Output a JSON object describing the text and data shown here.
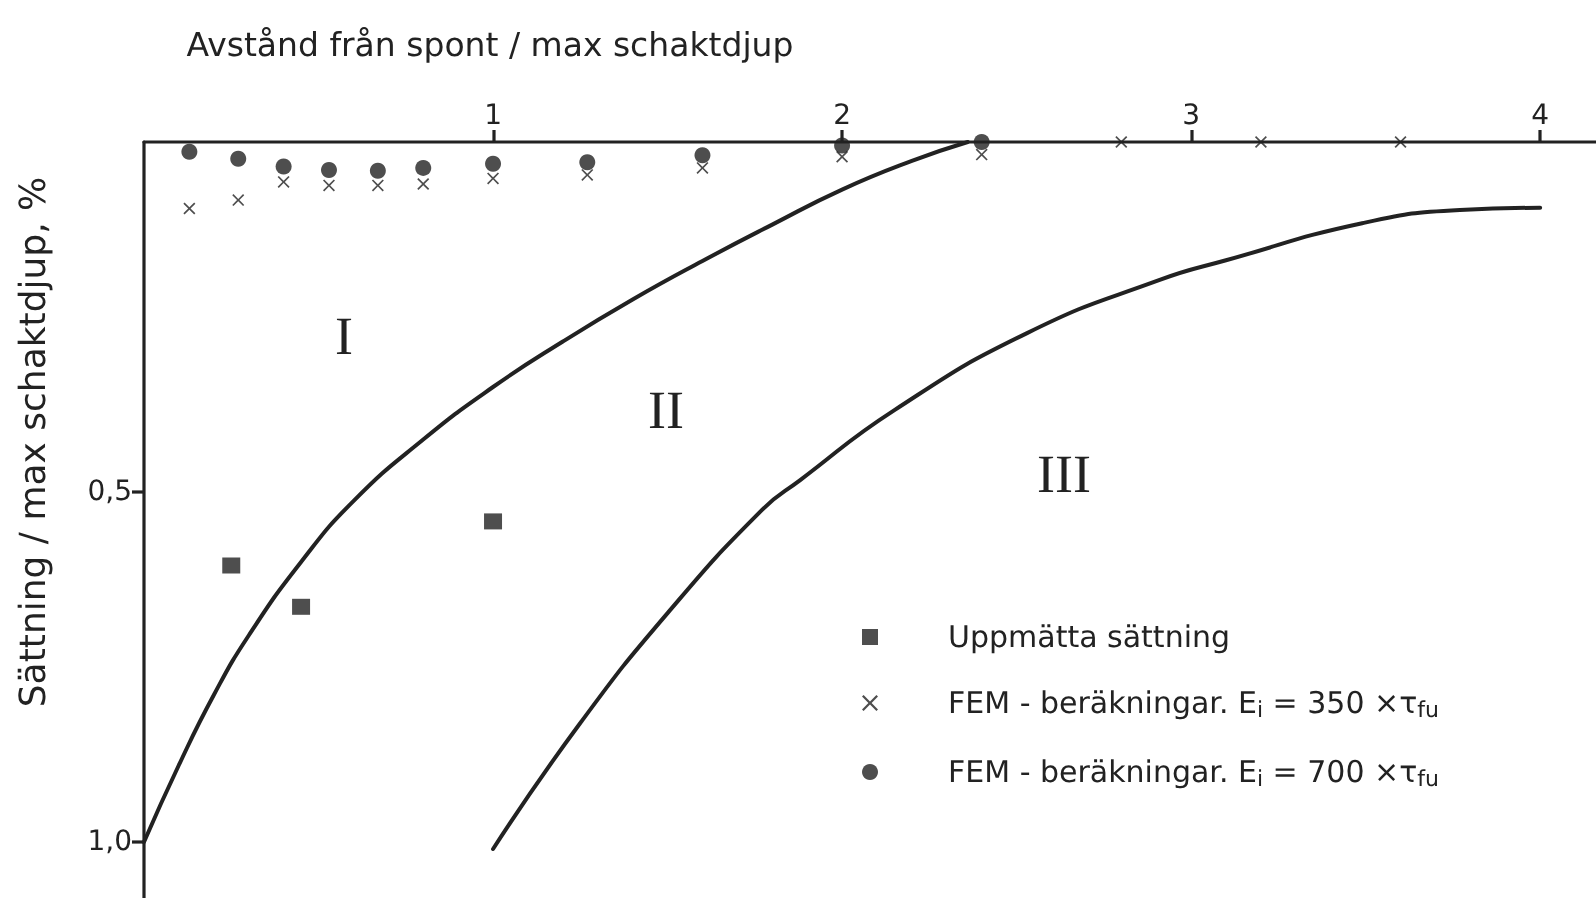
{
  "chart_data": {
    "type": "scatter",
    "xlabel": "Avstånd från spont / max schaktdjup",
    "ylabel": "Sättning / max schaktdjup, %",
    "xlim": [
      0,
      4.16
    ],
    "ylim": [
      1.08,
      0
    ],
    "xticks": [
      1,
      2,
      3,
      4
    ],
    "yticks": [
      {
        "value": 0.5,
        "label": "0,5"
      },
      {
        "value": 1,
        "label": "1,0"
      }
    ],
    "legend": "bottom right",
    "series": [
      {
        "name": "Uppmätta sättning",
        "marker": "square",
        "color": "#222222",
        "x": [
          0.25,
          0.45,
          1.0
        ],
        "values": [
          0.605,
          0.664,
          0.542
        ]
      },
      {
        "name": "FEM - beräkningar. E$_{i}$ = 350 ×τ$_{fu}$",
        "marker": "cross",
        "color": "#222222",
        "x": [
          0.13,
          0.27,
          0.4,
          0.53,
          0.67,
          0.8,
          1.0,
          1.27,
          1.6,
          2.0,
          2.4,
          2.8,
          3.2,
          3.6
        ],
        "values": [
          0.095,
          0.083,
          0.057,
          0.062,
          0.062,
          0.06,
          0.052,
          0.047,
          0.037,
          0.021,
          0.018,
          0,
          0,
          0
        ]
      },
      {
        "name": "FEM - beräkningar. E$_{i}$ = 700 ×τ$_{fu}$",
        "marker": "circle",
        "color": "#222222",
        "x": [
          0.13,
          0.27,
          0.4,
          0.53,
          0.67,
          0.8,
          1.0,
          1.27,
          1.6,
          2.0,
          2.4
        ],
        "values": [
          0.014,
          0.024,
          0.035,
          0.04,
          0.041,
          0.037,
          0.031,
          0.029,
          0.019,
          0.005,
          0
        ]
      },
      {
        "type": "line",
        "marker": "none",
        "line_style": "solid",
        "color": "#222222",
        "x": [
          0,
          0.1,
          0.2,
          0.3,
          0.45,
          0.6,
          0.8,
          1.0,
          1.2,
          1.4,
          1.6,
          1.8,
          2.0,
          2.2,
          2.36
        ],
        "values": [
          1.0,
          0.89,
          0.79,
          0.705,
          0.6,
          0.513,
          0.425,
          0.35,
          0.285,
          0.225,
          0.17,
          0.118,
          0.068,
          0.027,
          0
        ]
      },
      {
        "type": "line",
        "marker": "none",
        "line_style": "solid",
        "color": "#222222",
        "x": [
          1.0,
          1.25,
          1.5,
          1.77,
          1.88,
          2.15,
          2.53,
          2.91,
          3.1,
          3.49,
          3.77,
          4.0
        ],
        "values": [
          1.01,
          0.83,
          0.673,
          0.526,
          0.483,
          0.383,
          0.273,
          0.197,
          0.169,
          0.116,
          0.097,
          0.094
        ]
      }
    ],
    "annotations": [
      "I",
      "II",
      "III"
    ]
  }
}
